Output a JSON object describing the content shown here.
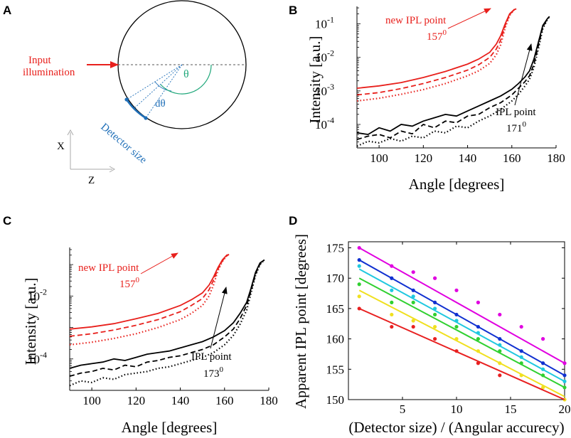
{
  "panels": {
    "A": {
      "letter": "A",
      "input_label_line1": "Input",
      "input_label_line2": "illumination",
      "theta": "θ",
      "dtheta": "dθ",
      "detector_label": "Detector size",
      "x_axis": "X",
      "z_axis": "Z",
      "colors": {
        "input": "#e8201c",
        "theta": "#1fa77a",
        "detector": "#1f6fb8"
      }
    },
    "B": {
      "letter": "B",
      "ylabel": "Intensity [a.u.]",
      "xlabel": "Angle [degrees]",
      "xticks": [
        "100",
        "120",
        "140",
        "160",
        "180"
      ],
      "yticks": [
        {
          "base": "10",
          "exp": "-1"
        },
        {
          "base": "10",
          "exp": "-2"
        },
        {
          "base": "10",
          "exp": "-3"
        },
        {
          "base": "10",
          "exp": "-4"
        }
      ],
      "new_ipl_line1": "new IPL point",
      "new_ipl_value": "157",
      "new_ipl_sup": "0",
      "ipl_line1": "IPL point",
      "ipl_value": "171",
      "ipl_sup": "0"
    },
    "C": {
      "letter": "C",
      "ylabel": "Intensity [a.u.]",
      "xlabel": "Angle [degrees]",
      "xticks": [
        "100",
        "120",
        "140",
        "160",
        "180"
      ],
      "yticks": [
        {
          "base": "10",
          "exp": "-2"
        },
        {
          "base": "10",
          "exp": "-4"
        }
      ],
      "new_ipl_line1": "new IPL point",
      "new_ipl_value": "157",
      "new_ipl_sup": "0",
      "ipl_line1": "IPL point",
      "ipl_value": "173",
      "ipl_sup": "0"
    },
    "D": {
      "letter": "D",
      "ylabel": "Apparent IPL point [degrees]",
      "xlabel": "(Detector size) / (Angular accurecy)",
      "xticks": [
        "5",
        "10",
        "15",
        "20"
      ],
      "yticks": [
        "150",
        "155",
        "160",
        "165",
        "170",
        "175"
      ]
    }
  },
  "chart_data": [
    {
      "panel": "B",
      "type": "line",
      "xlabel": "Angle [degrees]",
      "ylabel": "Intensity [a.u.]",
      "xlim": [
        90,
        180
      ],
      "ylim_log10": [
        -4.7,
        -0.5
      ],
      "yscale": "log",
      "series": [
        {
          "name": "red solid",
          "color": "#e8201c",
          "style": "solid",
          "x": [
            90,
            100,
            110,
            120,
            130,
            140,
            145,
            150,
            153,
            155,
            157,
            159,
            161,
            162
          ],
          "log10y": [
            -2.92,
            -2.85,
            -2.75,
            -2.6,
            -2.42,
            -2.2,
            -2.05,
            -1.85,
            -1.6,
            -1.35,
            -1.0,
            -0.7,
            -0.58,
            -0.55
          ]
        },
        {
          "name": "red dashed",
          "color": "#e8201c",
          "style": "dashed",
          "x": [
            90,
            100,
            110,
            120,
            130,
            140,
            145,
            150,
            153,
            155,
            157,
            159,
            161,
            162
          ],
          "log10y": [
            -3.12,
            -3.05,
            -2.93,
            -2.78,
            -2.6,
            -2.38,
            -2.22,
            -2.0,
            -1.75,
            -1.48,
            -1.05,
            -0.72,
            -0.58,
            -0.55
          ]
        },
        {
          "name": "red dotted",
          "color": "#e8201c",
          "style": "dotted",
          "x": [
            90,
            100,
            110,
            120,
            130,
            140,
            145,
            150,
            153,
            155,
            157,
            159,
            161,
            162
          ],
          "log10y": [
            -3.3,
            -3.22,
            -3.1,
            -2.96,
            -2.78,
            -2.55,
            -2.4,
            -2.18,
            -1.92,
            -1.62,
            -1.12,
            -0.75,
            -0.58,
            -0.55
          ]
        },
        {
          "name": "black solid",
          "color": "#000000",
          "style": "solid",
          "x": [
            90,
            95,
            100,
            105,
            110,
            115,
            120,
            125,
            130,
            135,
            140,
            145,
            150,
            155,
            160,
            163,
            166,
            168,
            170,
            172,
            174,
            176,
            177
          ],
          "log10y": [
            -4.25,
            -4.3,
            -4.1,
            -4.2,
            -4.0,
            -4.05,
            -3.9,
            -3.8,
            -3.7,
            -3.75,
            -3.6,
            -3.45,
            -3.3,
            -3.15,
            -2.95,
            -2.78,
            -2.58,
            -2.4,
            -2.05,
            -1.55,
            -1.05,
            -0.85,
            -0.78
          ]
        },
        {
          "name": "black dashed",
          "color": "#000000",
          "style": "dashed",
          "x": [
            90,
            95,
            100,
            105,
            110,
            115,
            120,
            125,
            130,
            135,
            140,
            145,
            150,
            155,
            160,
            163,
            166,
            168,
            170,
            172,
            174,
            176,
            177
          ],
          "log10y": [
            -4.45,
            -4.35,
            -4.3,
            -4.4,
            -4.2,
            -4.28,
            -4.0,
            -4.1,
            -3.9,
            -3.95,
            -3.75,
            -3.7,
            -3.5,
            -3.35,
            -3.12,
            -2.92,
            -2.72,
            -2.55,
            -2.2,
            -1.65,
            -1.1,
            -0.85,
            -0.78
          ]
        },
        {
          "name": "black dotted",
          "color": "#000000",
          "style": "dotted",
          "x": [
            90,
            95,
            100,
            105,
            110,
            115,
            120,
            125,
            130,
            135,
            140,
            145,
            150,
            155,
            160,
            163,
            166,
            168,
            170,
            172,
            174,
            176,
            177
          ],
          "log10y": [
            -4.65,
            -4.5,
            -4.55,
            -4.42,
            -4.5,
            -4.35,
            -4.4,
            -4.2,
            -4.25,
            -4.05,
            -4.1,
            -3.9,
            -3.75,
            -3.55,
            -3.3,
            -3.1,
            -2.85,
            -2.65,
            -2.3,
            -1.75,
            -1.15,
            -0.88,
            -0.78
          ]
        }
      ]
    },
    {
      "panel": "C",
      "type": "line",
      "xlabel": "Angle [degrees]",
      "ylabel": "Intensity [a.u.]",
      "xlim": [
        90,
        180
      ],
      "ylim_log10": [
        -5.0,
        -0.5
      ],
      "yscale": "log",
      "series": [
        {
          "name": "red solid",
          "color": "#e8201c",
          "style": "solid",
          "x": [
            90,
            100,
            110,
            120,
            130,
            140,
            145,
            150,
            153,
            155,
            157,
            159,
            161,
            162
          ],
          "log10y": [
            -3.05,
            -2.98,
            -2.88,
            -2.72,
            -2.55,
            -2.3,
            -2.12,
            -1.9,
            -1.65,
            -1.4,
            -1.1,
            -0.85,
            -0.7,
            -0.68
          ]
        },
        {
          "name": "red dashed",
          "color": "#e8201c",
          "style": "dashed",
          "x": [
            90,
            100,
            110,
            120,
            130,
            140,
            145,
            150,
            153,
            155,
            157,
            159,
            161,
            162
          ],
          "log10y": [
            -3.28,
            -3.2,
            -3.08,
            -2.93,
            -2.75,
            -2.5,
            -2.3,
            -2.08,
            -1.8,
            -1.5,
            -1.15,
            -0.88,
            -0.72,
            -0.68
          ]
        },
        {
          "name": "red dotted",
          "color": "#e8201c",
          "style": "dotted",
          "x": [
            90,
            100,
            110,
            120,
            130,
            140,
            145,
            150,
            153,
            155,
            157,
            159,
            161,
            162
          ],
          "log10y": [
            -3.55,
            -3.47,
            -3.35,
            -3.2,
            -3.0,
            -2.75,
            -2.55,
            -2.3,
            -2.0,
            -1.65,
            -1.2,
            -0.9,
            -0.72,
            -0.68
          ]
        },
        {
          "name": "black solid",
          "color": "#000000",
          "style": "solid",
          "x": [
            90,
            95,
            100,
            105,
            110,
            115,
            120,
            125,
            130,
            135,
            140,
            145,
            150,
            155,
            160,
            164,
            167,
            170,
            172,
            174,
            176,
            178
          ],
          "log10y": [
            -4.3,
            -4.2,
            -4.15,
            -4.1,
            -4.0,
            -4.05,
            -3.95,
            -3.85,
            -3.8,
            -3.75,
            -3.65,
            -3.55,
            -3.45,
            -3.3,
            -3.1,
            -2.85,
            -2.55,
            -2.2,
            -1.75,
            -1.25,
            -0.95,
            -0.85
          ]
        },
        {
          "name": "black dashed",
          "color": "#000000",
          "style": "dashed",
          "x": [
            90,
            95,
            100,
            105,
            110,
            115,
            120,
            125,
            130,
            135,
            140,
            145,
            150,
            155,
            160,
            164,
            167,
            170,
            172,
            174,
            176,
            178
          ],
          "log10y": [
            -4.55,
            -4.45,
            -4.4,
            -4.3,
            -4.35,
            -4.2,
            -4.25,
            -4.1,
            -4.05,
            -3.95,
            -3.9,
            -3.8,
            -3.7,
            -3.55,
            -3.3,
            -3.05,
            -2.72,
            -2.3,
            -1.82,
            -1.3,
            -0.98,
            -0.85
          ]
        },
        {
          "name": "black dotted",
          "color": "#000000",
          "style": "dotted",
          "x": [
            90,
            95,
            100,
            105,
            110,
            115,
            120,
            125,
            130,
            135,
            140,
            145,
            150,
            155,
            160,
            164,
            167,
            170,
            172,
            174,
            176,
            178
          ],
          "log10y": [
            -4.85,
            -4.7,
            -4.75,
            -4.6,
            -4.65,
            -4.5,
            -4.45,
            -4.4,
            -4.3,
            -4.25,
            -4.15,
            -4.05,
            -3.95,
            -3.8,
            -3.55,
            -3.25,
            -2.9,
            -2.45,
            -1.9,
            -1.35,
            -1.0,
            -0.85
          ]
        }
      ]
    },
    {
      "panel": "D",
      "type": "scatter",
      "xlabel": "(Detector size) / (Angular accurecy)",
      "ylabel": "Apparent IPL point [degrees]",
      "xlim": [
        0,
        20
      ],
      "ylim": [
        150,
        176
      ],
      "series": [
        {
          "color": "#e000e0",
          "x": [
            1,
            4,
            6,
            8,
            10,
            12,
            14,
            16,
            18,
            20
          ],
          "y": [
            175,
            172,
            171,
            170,
            168,
            166,
            164,
            162,
            160,
            156
          ],
          "fit": [
            [
              1,
              175
            ],
            [
              20,
              156
            ]
          ]
        },
        {
          "color": "#1030d0",
          "x": [
            1,
            4,
            6,
            8,
            10,
            12,
            14,
            16,
            18,
            20
          ],
          "y": [
            173,
            170,
            168,
            166,
            164,
            162,
            160,
            158,
            156,
            154
          ],
          "fit": [
            [
              1,
              173
            ],
            [
              20,
              154
            ]
          ]
        },
        {
          "color": "#20c8e0",
          "x": [
            1,
            4,
            6,
            8,
            10,
            12,
            14,
            16,
            18,
            20
          ],
          "y": [
            172,
            168,
            167,
            165,
            163,
            161,
            159,
            157,
            155,
            153
          ],
          "fit": [
            [
              1,
              171.5
            ],
            [
              20,
              153
            ]
          ]
        },
        {
          "color": "#30d030",
          "x": [
            1,
            4,
            6,
            8,
            10,
            12,
            14,
            16,
            18,
            20
          ],
          "y": [
            169,
            166,
            166,
            164,
            162,
            160,
            158,
            156,
            154,
            152
          ],
          "fit": [
            [
              1,
              170
            ],
            [
              20,
              152
            ]
          ]
        },
        {
          "color": "#f0e020",
          "x": [
            1,
            4,
            6,
            8,
            10,
            12,
            14,
            16,
            18,
            20
          ],
          "y": [
            167,
            164,
            163,
            162,
            160,
            158,
            156,
            154,
            152,
            150
          ],
          "fit": [
            [
              1,
              168
            ],
            [
              20,
              150.5
            ]
          ]
        },
        {
          "color": "#e82020",
          "x": [
            1,
            4,
            6,
            8,
            10,
            12,
            14
          ],
          "y": [
            165,
            162,
            162,
            160,
            158,
            156,
            154
          ],
          "fit": [
            [
              1,
              165
            ],
            [
              20,
              150
            ]
          ]
        }
      ]
    }
  ]
}
